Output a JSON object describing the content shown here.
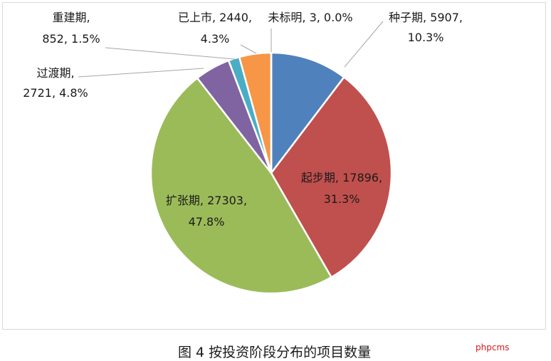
{
  "chart_data": {
    "type": "pie",
    "start_angle_deg": 0,
    "direction": "clockwise",
    "slices": [
      {
        "name": "种子期",
        "value": 5907,
        "percent": "10.3%",
        "color": "#4f81bd",
        "label_lines": [
          "种子期, 5907,",
          "10.3%"
        ]
      },
      {
        "name": "起步期",
        "value": 17896,
        "percent": "31.3%",
        "color": "#c0504d",
        "label_lines": [
          "起步期, 17896,",
          "31.3%"
        ]
      },
      {
        "name": "扩张期",
        "value": 27303,
        "percent": "47.8%",
        "color": "#9bbb59",
        "label_lines": [
          "扩张期, 27303,",
          "47.8%"
        ]
      },
      {
        "name": "过渡期",
        "value": 2721,
        "percent": "4.8%",
        "color": "#8064a2",
        "label_lines": [
          "过渡期,",
          "2721, 4.8%"
        ]
      },
      {
        "name": "重建期",
        "value": 852,
        "percent": "1.5%",
        "color": "#4bacc6",
        "label_lines": [
          "重建期,",
          "852, 1.5%"
        ]
      },
      {
        "name": "已上市",
        "value": 2440,
        "percent": "4.3%",
        "color": "#f79646",
        "label_lines": [
          "已上市, 2440,",
          "4.3%"
        ]
      },
      {
        "name": "未标明",
        "value": 3,
        "percent": "0.0%",
        "color": "#2c4d75",
        "label_lines": [
          "未标明, 3, 0.0%"
        ]
      }
    ]
  },
  "caption": "图 4  按投资阶段分布的项目数量",
  "watermark": "phpcms"
}
